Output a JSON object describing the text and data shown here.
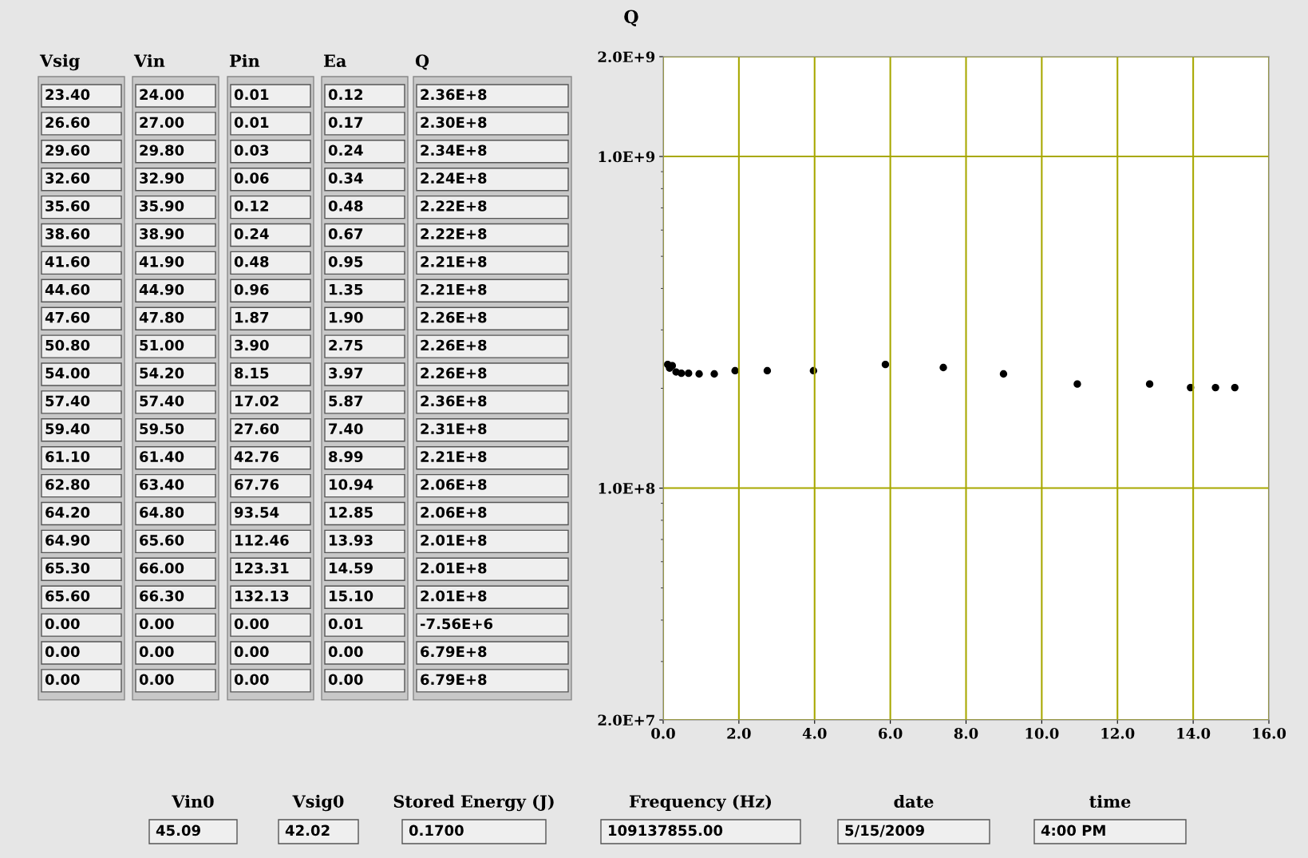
{
  "chart_data": [
    {
      "type": "other",
      "categories": [
        "Vsig",
        "Vin",
        "Pin",
        "Ea",
        "Q"
      ],
      "cell_labels": [
        [
          "23.40",
          "24.00",
          "0.01",
          "0.12",
          "2.36E+8"
        ],
        [
          "26.60",
          "27.00",
          "0.01",
          "0.17",
          "2.30E+8"
        ],
        [
          "29.60",
          "29.80",
          "0.03",
          "0.24",
          "2.34E+8"
        ],
        [
          "32.60",
          "32.90",
          "0.06",
          "0.34",
          "2.24E+8"
        ],
        [
          "35.60",
          "35.90",
          "0.12",
          "0.48",
          "2.22E+8"
        ],
        [
          "38.60",
          "38.90",
          "0.24",
          "0.67",
          "2.22E+8"
        ],
        [
          "41.60",
          "41.90",
          "0.48",
          "0.95",
          "2.21E+8"
        ],
        [
          "44.60",
          "44.90",
          "0.96",
          "1.35",
          "2.21E+8"
        ],
        [
          "47.60",
          "47.80",
          "1.87",
          "1.90",
          "2.26E+8"
        ],
        [
          "50.80",
          "51.00",
          "3.90",
          "2.75",
          "2.26E+8"
        ],
        [
          "54.00",
          "54.20",
          "8.15",
          "3.97",
          "2.26E+8"
        ],
        [
          "57.40",
          "57.40",
          "17.02",
          "5.87",
          "2.36E+8"
        ],
        [
          "59.40",
          "59.50",
          "27.60",
          "7.40",
          "2.31E+8"
        ],
        [
          "61.10",
          "61.40",
          "42.76",
          "8.99",
          "2.21E+8"
        ],
        [
          "62.80",
          "63.40",
          "67.76",
          "10.94",
          "2.06E+8"
        ],
        [
          "64.20",
          "64.80",
          "93.54",
          "12.85",
          "2.06E+8"
        ],
        [
          "64.90",
          "65.60",
          "112.46",
          "13.93",
          "2.01E+8"
        ],
        [
          "65.30",
          "66.00",
          "123.31",
          "14.59",
          "2.01E+8"
        ],
        [
          "65.60",
          "66.30",
          "132.13",
          "15.10",
          "2.01E+8"
        ],
        [
          "0.00",
          "0.00",
          "0.00",
          "0.01",
          "-7.56E+6"
        ],
        [
          "0.00",
          "0.00",
          "0.00",
          "0.00",
          "6.79E+8"
        ],
        [
          "0.00",
          "0.00",
          "0.00",
          "0.00",
          "6.79E+8"
        ]
      ],
      "annotations": [
        "Vin0",
        "45.09",
        "Vsig0",
        "42.02",
        "Stored Energy (J)",
        "0.1700",
        "Frequency (Hz)",
        "109137855.00",
        "date",
        "5/15/2009",
        "time",
        "4:00 PM"
      ]
    },
    {
      "type": "scatter",
      "ylabel": "Q",
      "log": "y",
      "grid": true,
      "marker": "circle",
      "xlim": [
        0,
        16
      ],
      "xticks": [
        {
          "value": 0,
          "label": "0.0"
        },
        {
          "value": 2,
          "label": "2.0"
        },
        {
          "value": 4,
          "label": "4.0"
        },
        {
          "value": 6,
          "label": "6.0"
        },
        {
          "value": 8,
          "label": "8.0"
        },
        {
          "value": 10,
          "label": "10.0"
        },
        {
          "value": 12,
          "label": "12.0"
        },
        {
          "value": 14,
          "label": "14.0"
        },
        {
          "value": 16,
          "label": "16.0"
        }
      ],
      "ylim": [
        20000000,
        2000000000
      ],
      "yticks": [
        {
          "value": 20000000,
          "label": "2.0E+7"
        },
        {
          "value": 100000000,
          "label": "1.0E+8"
        },
        {
          "value": 1000000000,
          "label": "1.0E+9"
        },
        {
          "value": 2000000000,
          "label": "2.0E+9"
        }
      ],
      "x": [
        0.12,
        0.17,
        0.24,
        0.34,
        0.48,
        0.67,
        0.95,
        1.35,
        1.9,
        2.75,
        3.97,
        5.87,
        7.4,
        8.99,
        10.94,
        12.85,
        13.93,
        14.59,
        15.1
      ],
      "series": [
        {
          "color": "#000000",
          "values": [
            236000000,
            230000000,
            234000000,
            224000000,
            222000000,
            222000000,
            221000000,
            221000000,
            226000000,
            226000000,
            226000000,
            236000000,
            231000000,
            221000000,
            206000000,
            206000000,
            201000000,
            201000000,
            201000000
          ]
        }
      ]
    }
  ]
}
